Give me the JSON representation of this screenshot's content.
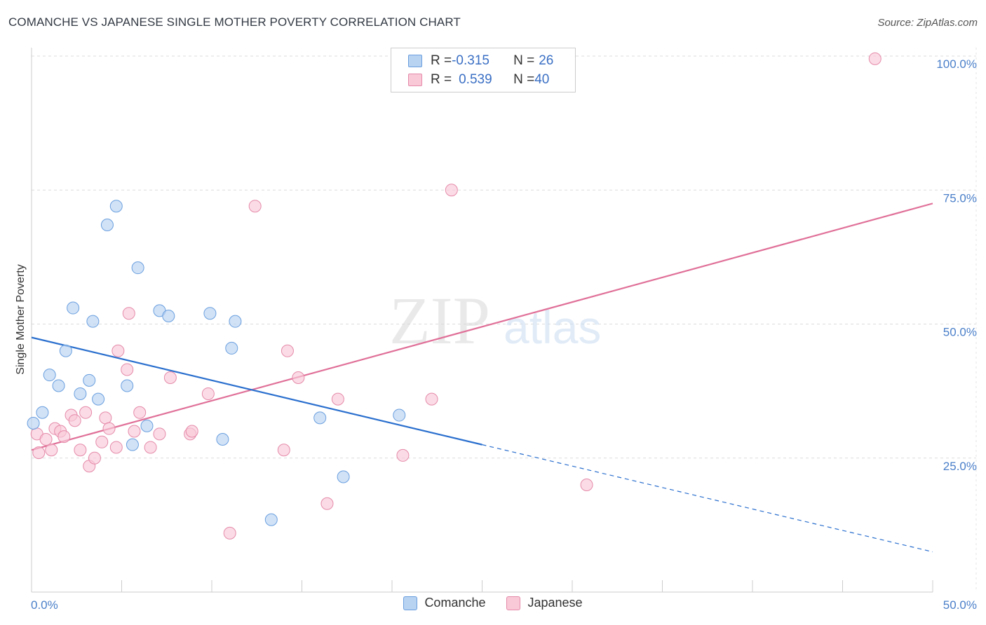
{
  "header": {
    "title": "COMANCHE VS JAPANESE SINGLE MOTHER POVERTY CORRELATION CHART",
    "source": "Source: ZipAtlas.com"
  },
  "watermark": {
    "zip": "ZIP",
    "atlas": "atlas"
  },
  "legend": {
    "rows": [
      {
        "r_label": "R = ",
        "r_value": "-0.315",
        "n_label": "N = ",
        "n_value": "26"
      },
      {
        "r_label": "R = ",
        "r_value": "0.539",
        "n_label": "N = ",
        "n_value": "40"
      }
    ]
  },
  "colors": {
    "comanche_fill": "#b8d2f2",
    "comanche_stroke": "#6a9fde",
    "comanche_line": "#2a6fce",
    "japanese_fill": "#f9c9d8",
    "japanese_stroke": "#e58aa9",
    "japanese_line": "#e07098",
    "tick_label": "#4a7fc9"
  },
  "chart_data": {
    "type": "scatter",
    "title": "COMANCHE VS JAPANESE SINGLE MOTHER POVERTY CORRELATION CHART",
    "ylabel": "Single Mother Poverty",
    "xlabel": "",
    "xlim": [
      0,
      50
    ],
    "ylim": [
      0,
      105
    ],
    "x_tick_labels": [
      "0.0%",
      "50.0%"
    ],
    "y_ticks": [
      25,
      50,
      75,
      100
    ],
    "y_tick_labels": [
      "25.0%",
      "50.0%",
      "75.0%",
      "100.0%"
    ],
    "grid": true,
    "legend_position": "top-center",
    "series": [
      {
        "name": "Comanche",
        "r": -0.315,
        "n": 26,
        "points": [
          [
            0.1,
            31.5
          ],
          [
            0.6,
            33.5
          ],
          [
            1.0,
            40.5
          ],
          [
            1.5,
            38.5
          ],
          [
            1.9,
            45.0
          ],
          [
            2.3,
            53.0
          ],
          [
            2.7,
            37.0
          ],
          [
            3.2,
            39.5
          ],
          [
            3.4,
            50.5
          ],
          [
            3.7,
            36.0
          ],
          [
            4.2,
            68.5
          ],
          [
            4.7,
            72.0
          ],
          [
            5.3,
            38.5
          ],
          [
            5.6,
            27.5
          ],
          [
            5.9,
            60.5
          ],
          [
            6.4,
            31.0
          ],
          [
            7.1,
            52.5
          ],
          [
            7.6,
            51.5
          ],
          [
            9.9,
            52.0
          ],
          [
            10.6,
            28.5
          ],
          [
            11.1,
            45.5
          ],
          [
            11.3,
            50.5
          ],
          [
            13.3,
            13.5
          ],
          [
            16.0,
            32.5
          ],
          [
            17.3,
            21.5
          ],
          [
            20.4,
            33.0
          ]
        ],
        "trend": {
          "x": [
            0,
            25
          ],
          "y": [
            47.5,
            27.5
          ]
        },
        "trend_extension": {
          "x": [
            25,
            50
          ],
          "y": [
            27.5,
            7.5
          ]
        }
      },
      {
        "name": "Japanese",
        "r": 0.539,
        "n": 40,
        "points": [
          [
            0.3,
            29.5
          ],
          [
            0.4,
            26.0
          ],
          [
            0.8,
            28.5
          ],
          [
            1.1,
            26.5
          ],
          [
            1.3,
            30.5
          ],
          [
            1.6,
            30.0
          ],
          [
            1.8,
            29.0
          ],
          [
            2.2,
            33.0
          ],
          [
            2.4,
            32.0
          ],
          [
            2.7,
            26.5
          ],
          [
            3.0,
            33.5
          ],
          [
            3.2,
            23.5
          ],
          [
            3.5,
            25.0
          ],
          [
            3.9,
            28.0
          ],
          [
            4.1,
            32.5
          ],
          [
            4.3,
            30.5
          ],
          [
            4.7,
            27.0
          ],
          [
            4.8,
            45.0
          ],
          [
            5.3,
            41.5
          ],
          [
            5.4,
            52.0
          ],
          [
            5.7,
            30.0
          ],
          [
            6.0,
            33.5
          ],
          [
            6.6,
            27.0
          ],
          [
            7.1,
            29.5
          ],
          [
            7.7,
            40.0
          ],
          [
            8.8,
            29.5
          ],
          [
            8.9,
            30.0
          ],
          [
            9.8,
            37.0
          ],
          [
            11.0,
            11.0
          ],
          [
            12.4,
            72.0
          ],
          [
            14.0,
            26.5
          ],
          [
            14.2,
            45.0
          ],
          [
            14.8,
            40.0
          ],
          [
            16.4,
            16.5
          ],
          [
            17.0,
            36.0
          ],
          [
            20.6,
            25.5
          ],
          [
            22.2,
            36.0
          ],
          [
            23.3,
            75.0
          ],
          [
            30.8,
            20.0
          ],
          [
            46.8,
            99.5
          ]
        ],
        "trend": {
          "x": [
            0,
            50
          ],
          "y": [
            26.5,
            72.5
          ]
        }
      }
    ]
  }
}
